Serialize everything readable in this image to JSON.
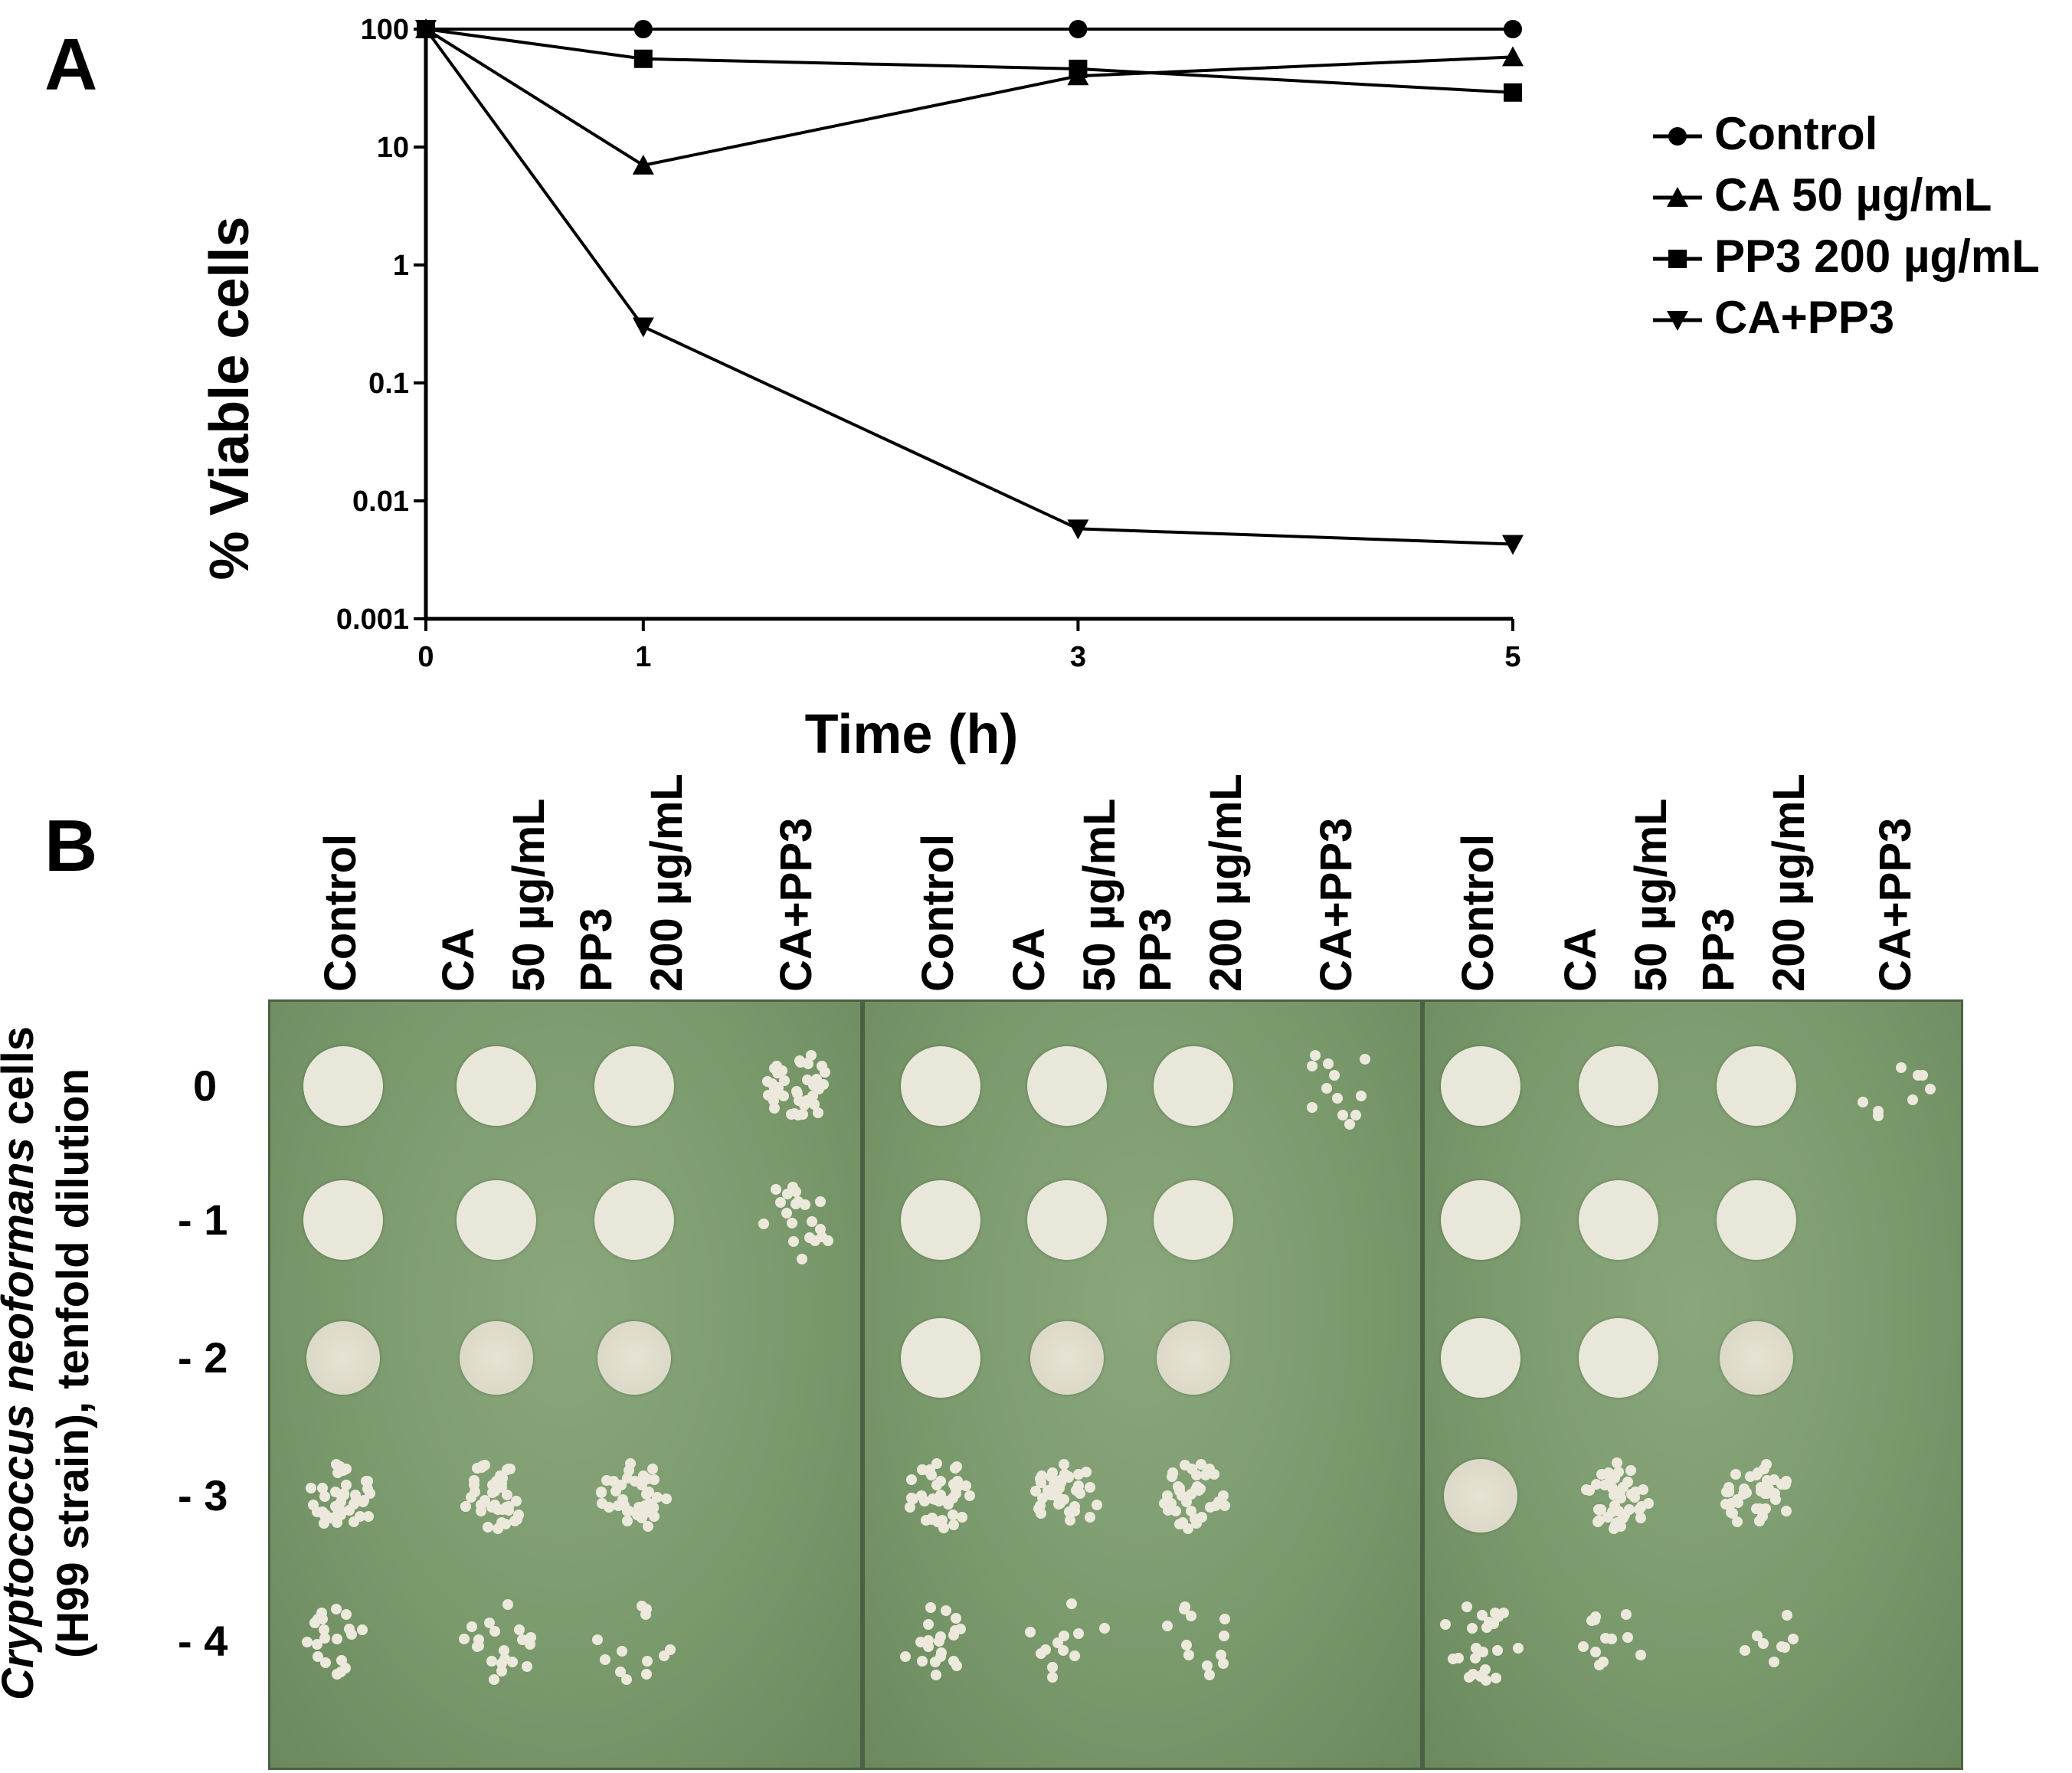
{
  "panel_a": {
    "letter": "A"
  },
  "panel_b": {
    "letter": "B"
  },
  "chart_data": {
    "type": "line",
    "title": "",
    "xlabel": "Time (h)",
    "ylabel": "% Viable cells",
    "x": [
      0,
      1,
      3,
      5
    ],
    "xticks": [
      "0",
      "1",
      "3",
      "5"
    ],
    "yscale": "log",
    "ylim": [
      0.001,
      100
    ],
    "yticks": [
      "0.001",
      "0.01",
      "0.1",
      "1",
      "10",
      "100"
    ],
    "legend_position": "right",
    "series": [
      {
        "name": "Control",
        "marker": "circle",
        "values": [
          100,
          100,
          100,
          100
        ]
      },
      {
        "name": "CA 50 µg/mL",
        "marker": "triangle-up",
        "values": [
          100,
          7,
          40,
          58
        ]
      },
      {
        "name": "PP3 200 µg/mL",
        "marker": "square",
        "values": [
          100,
          56,
          46,
          29
        ]
      },
      {
        "name": "CA+PP3",
        "marker": "triangle-down",
        "values": [
          100,
          0.3,
          0.0058,
          0.0043
        ]
      }
    ]
  },
  "spot_assay": {
    "columns": [
      "Control",
      "CA\n50 µg/mL",
      "PP3\n200 µg/mL",
      "CA+PP3"
    ],
    "col_label_lines": [
      [
        "Control"
      ],
      [
        "CA",
        "50 µg/mL"
      ],
      [
        "PP3",
        "200 µg/mL"
      ],
      [
        "CA+PP3"
      ]
    ],
    "dilutions": [
      "0",
      "- 1",
      "- 2",
      "- 3",
      "- 4"
    ],
    "side_label_italic": "Cryptococcus neoformans",
    "side_label_rest": " cells",
    "side_label_line2": "(H99 strain), tenfold dilution",
    "plates": [
      {
        "growth": [
          [
            3,
            3,
            3,
            1
          ],
          [
            3,
            3,
            3,
            0.5
          ],
          [
            2,
            2,
            2,
            0
          ],
          [
            1,
            1,
            1,
            0
          ],
          [
            0.5,
            0.5,
            0.3,
            0
          ]
        ]
      },
      {
        "growth": [
          [
            3,
            3,
            3,
            0.3
          ],
          [
            3,
            3,
            3,
            0
          ],
          [
            3,
            2,
            2,
            0
          ],
          [
            1,
            1,
            1,
            0
          ],
          [
            0.5,
            0.3,
            0.3,
            0
          ]
        ]
      },
      {
        "growth": [
          [
            3,
            3,
            3,
            0.2
          ],
          [
            3,
            3,
            3,
            0
          ],
          [
            3,
            3,
            2,
            0
          ],
          [
            2,
            1,
            1,
            0
          ],
          [
            0.6,
            0.3,
            0.2,
            0
          ]
        ]
      }
    ]
  }
}
